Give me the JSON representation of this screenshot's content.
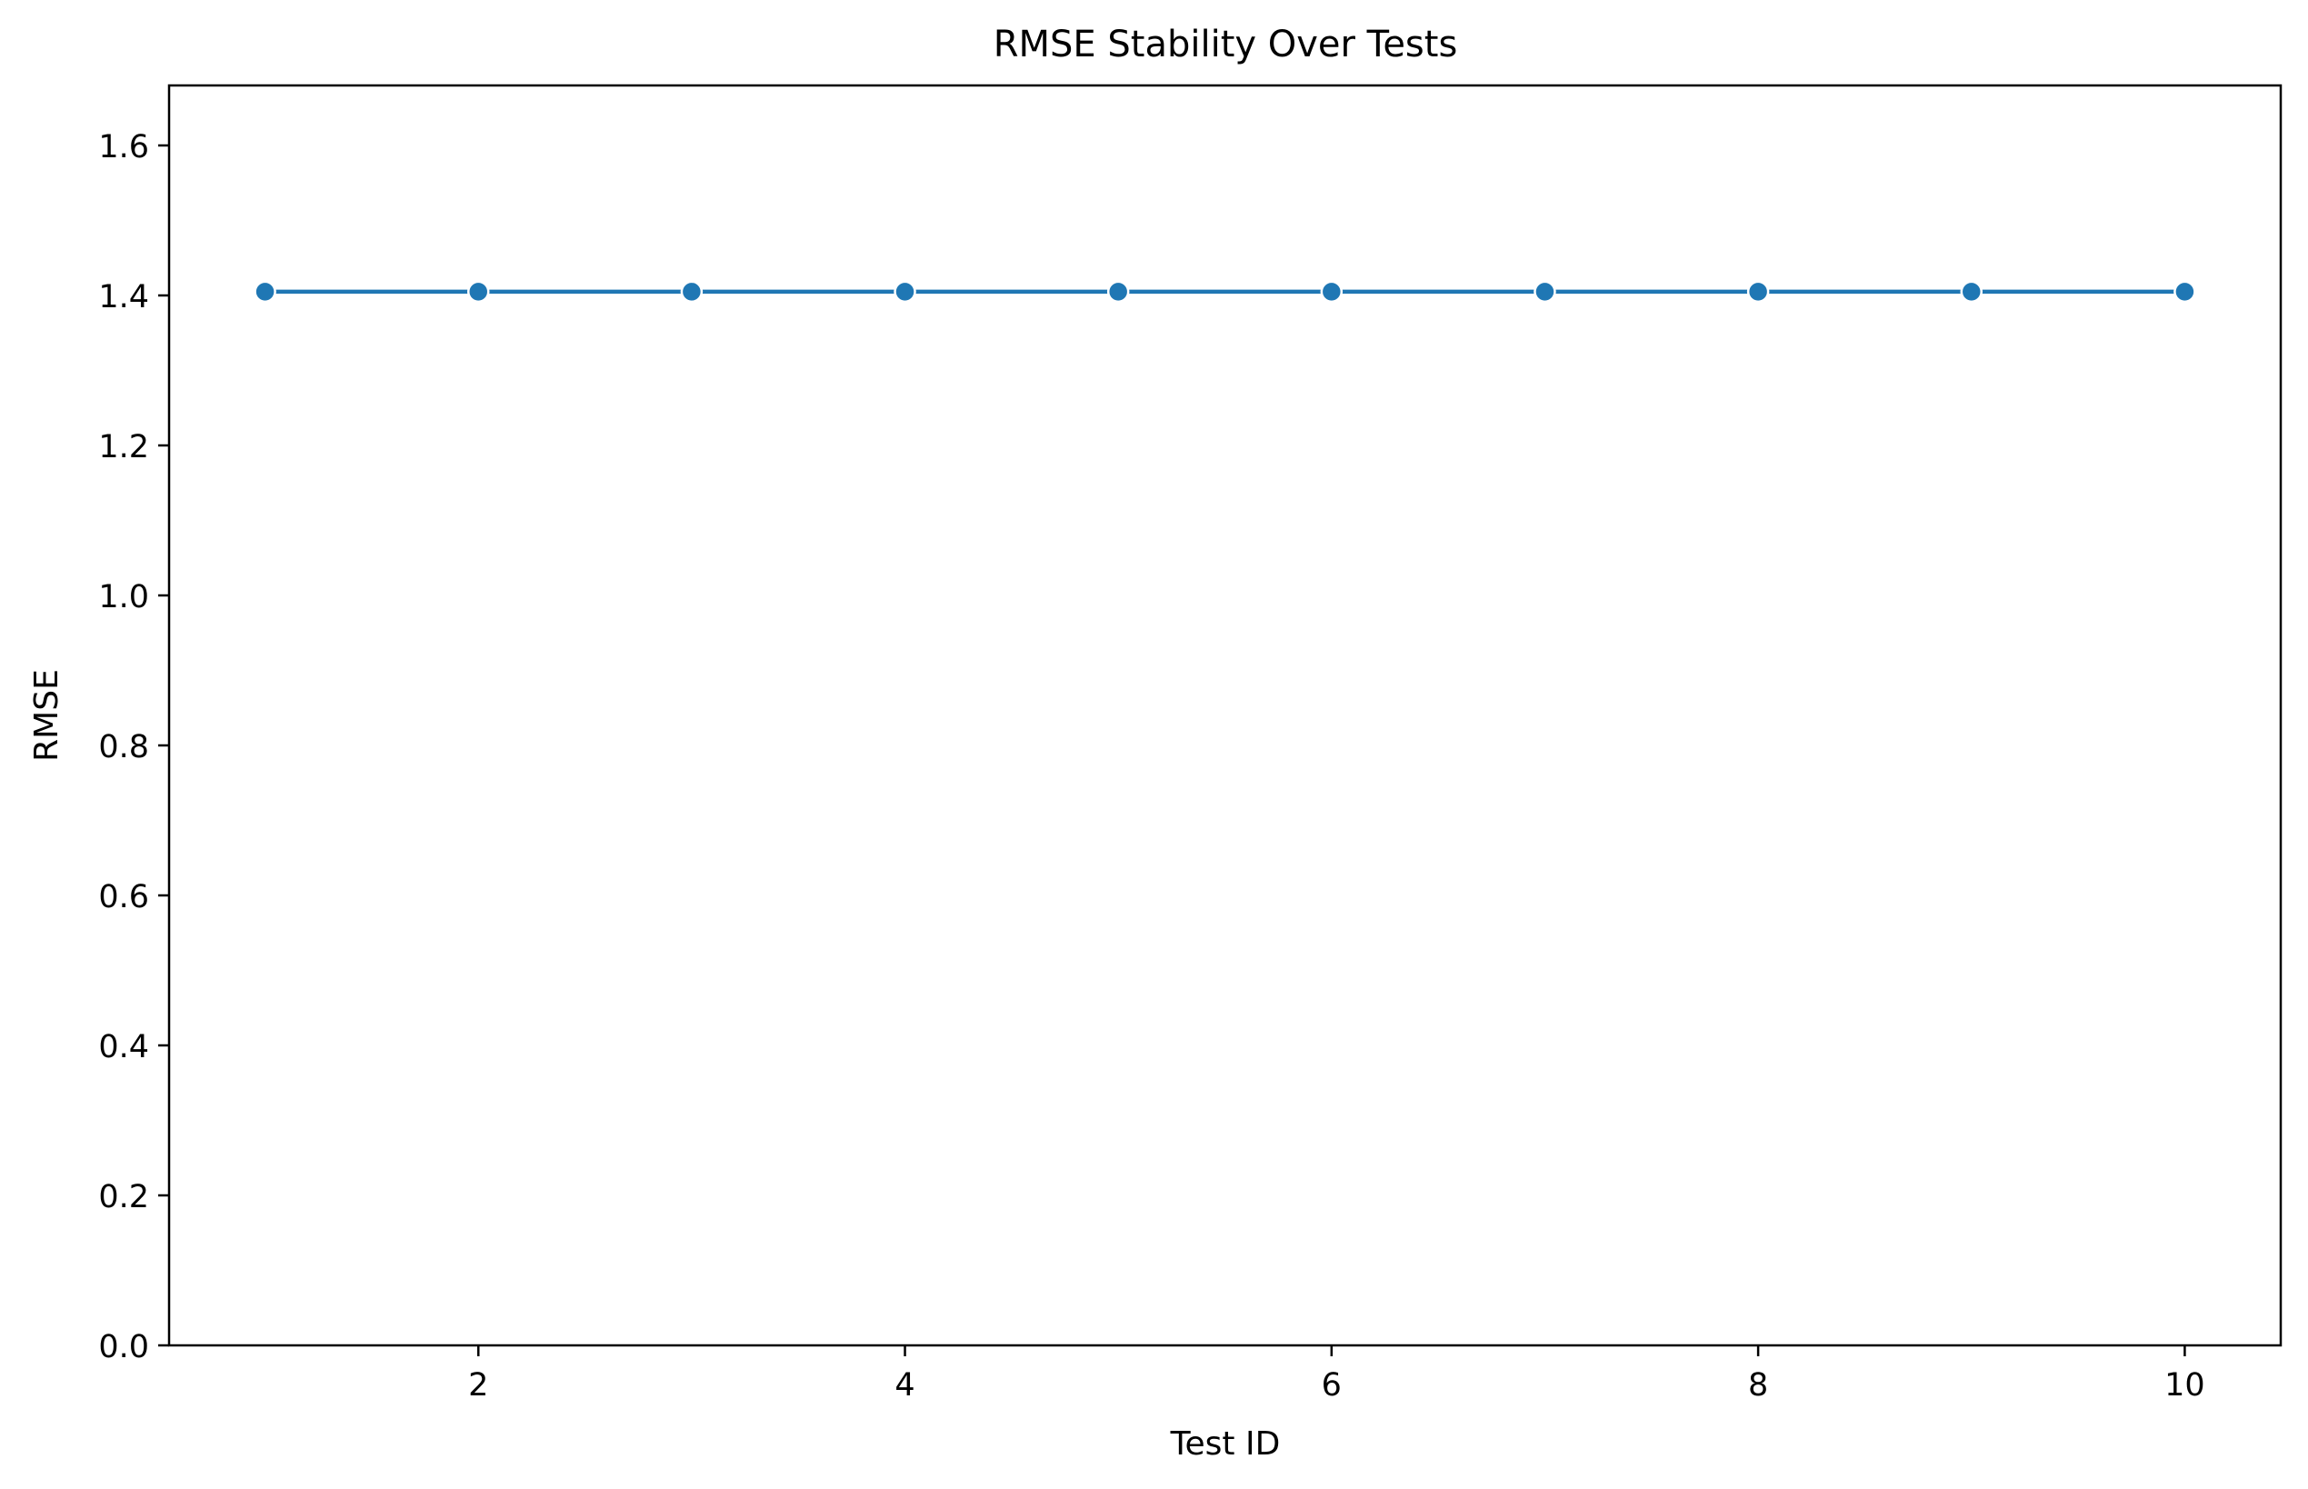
{
  "chart_data": {
    "type": "line",
    "title": "RMSE Stability Over Tests",
    "xlabel": "Test ID",
    "ylabel": "RMSE",
    "xlim": [
      0.55,
      10.45
    ],
    "ylim": [
      0,
      1.68
    ],
    "xticks": [
      2,
      4,
      6,
      8,
      10
    ],
    "xtick_labels": [
      "2",
      "4",
      "6",
      "8",
      "10"
    ],
    "yticks": [
      0.0,
      0.2,
      0.4,
      0.6,
      0.8,
      1.0,
      1.2,
      1.4,
      1.6
    ],
    "ytick_labels": [
      "0.0",
      "0.2",
      "0.4",
      "0.6",
      "0.8",
      "1.0",
      "1.2",
      "1.4",
      "1.6"
    ],
    "grid": false,
    "series": [
      {
        "x": [
          1,
          2,
          3,
          4,
          5,
          6,
          7,
          8,
          9,
          10
        ],
        "values": [
          1.405,
          1.405,
          1.405,
          1.405,
          1.405,
          1.405,
          1.405,
          1.405,
          1.405,
          1.405
        ],
        "color": "#1f77b4",
        "marker": "circle"
      }
    ]
  }
}
